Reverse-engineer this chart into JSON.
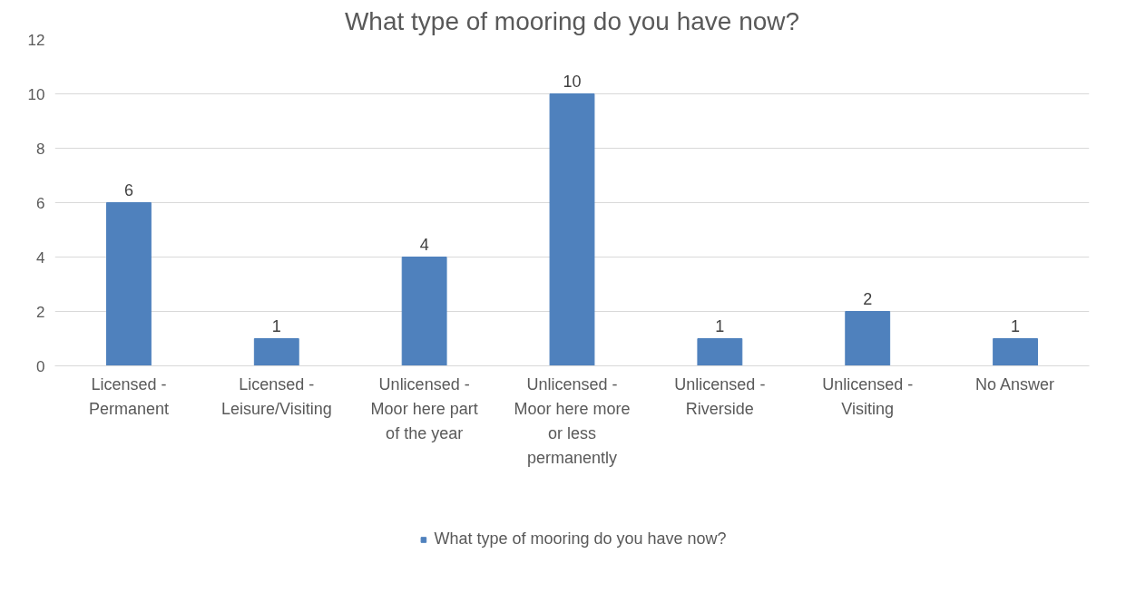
{
  "chart_data": {
    "type": "bar",
    "title": "What type of mooring do you have now?",
    "categories": [
      "Licensed - Permanent",
      "Licensed - Leisure/Visiting",
      "Unlicensed - Moor here part of the year",
      "Unlicensed - Moor here more or less permanently",
      "Unlicensed - Riverside",
      "Unlicensed - Visiting",
      "No Answer"
    ],
    "series": [
      {
        "name": "What type of mooring do you have now?",
        "color": "#4f81bd",
        "values": [
          6,
          1,
          4,
          10,
          1,
          2,
          1
        ]
      }
    ],
    "ylim": [
      0,
      12
    ],
    "yticks": [
      0,
      2,
      4,
      6,
      8,
      10,
      12
    ],
    "grid": "y",
    "data_labels": true,
    "legend": "bottom"
  }
}
